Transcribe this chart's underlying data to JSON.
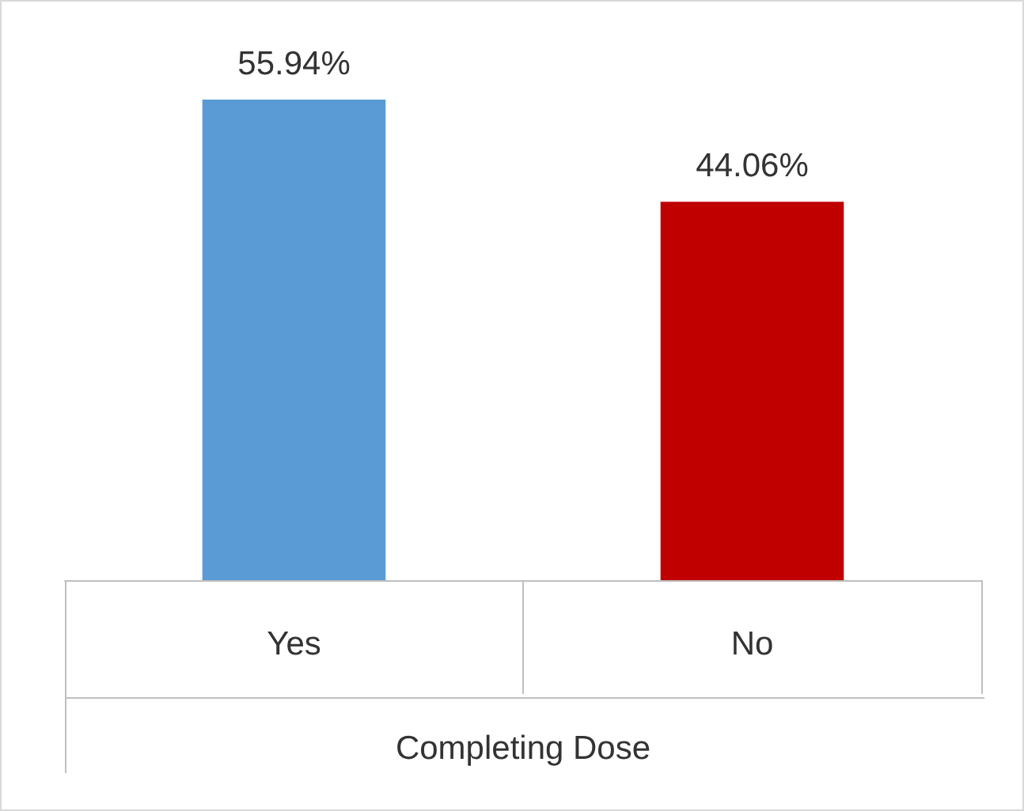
{
  "chart_data": {
    "type": "bar",
    "xlabel": "Completing Dose",
    "categories": [
      "Yes",
      "No"
    ],
    "values": [
      55.94,
      44.06
    ],
    "colors": [
      "#5b9bd5",
      "#c00000"
    ],
    "value_labels": [
      "55.94%",
      "44.06%"
    ]
  }
}
